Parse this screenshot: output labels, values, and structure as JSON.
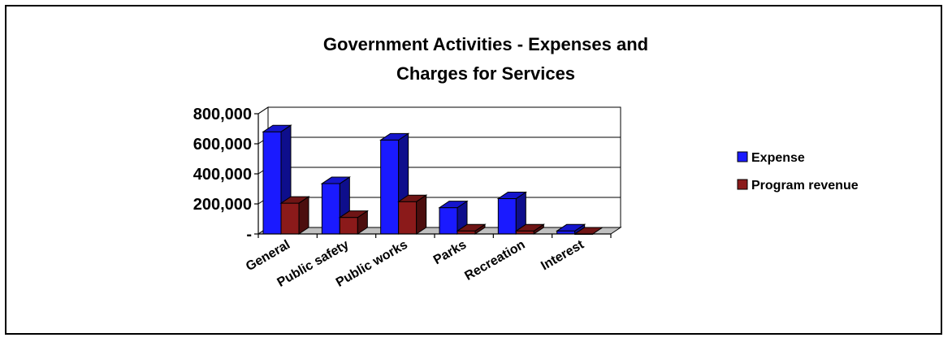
{
  "chart_data": {
    "type": "bar",
    "title_lines": [
      "Government Activities - Expenses and",
      "Charges for Services"
    ],
    "xlabel": "",
    "ylabel": "",
    "categories": [
      "General",
      "Public safety",
      "Public works",
      "Parks",
      "Recreation",
      "Interest"
    ],
    "series": [
      {
        "name": "Expense",
        "values": [
          680000,
          335000,
          625000,
          175000,
          235000,
          20000
        ],
        "color": "#1a1aff"
      },
      {
        "name": "Program revenue",
        "values": [
          205000,
          110000,
          215000,
          20000,
          20000,
          0
        ],
        "color": "#8b1a1a"
      }
    ],
    "ylim": [
      0,
      800000
    ],
    "yticks": [
      0,
      200000,
      400000,
      600000,
      800000
    ],
    "ytick_labels": [
      "-",
      "200,000",
      "400,000",
      "600,000",
      "800,000"
    ],
    "grid": true,
    "legend_position": "right",
    "style": "3d-clustered-column"
  }
}
